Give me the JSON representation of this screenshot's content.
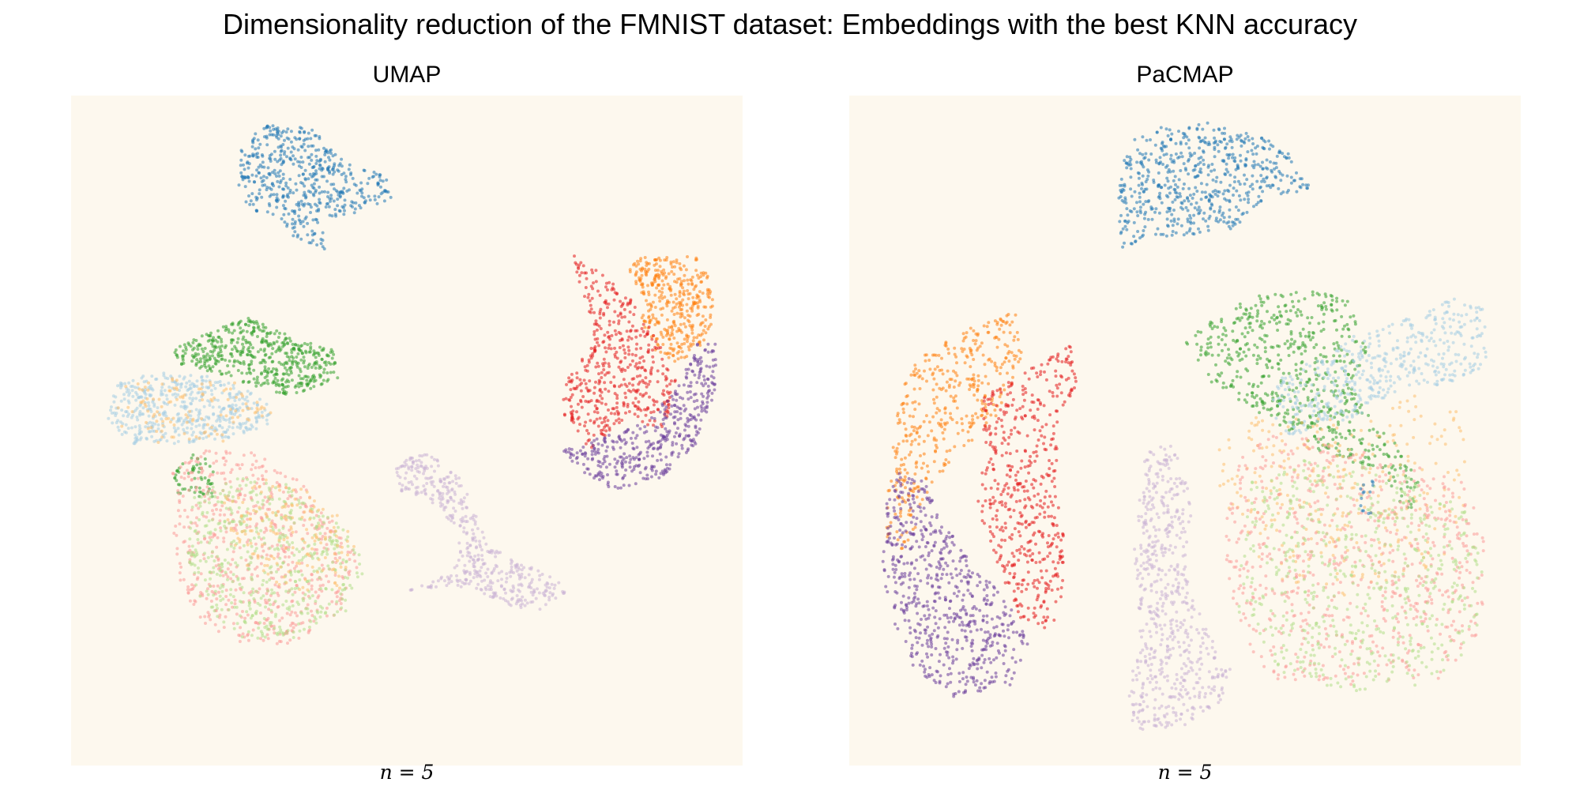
{
  "title": "Dimensionality reduction of the FMNIST dataset: Embeddings with the best KNN accuracy",
  "chart_data": [
    {
      "type": "scatter",
      "title": "UMAP",
      "xlabel": "n = 5",
      "ylabel": "",
      "axes": "off",
      "grid": false,
      "legend": "none",
      "xlim": [
        0,
        100
      ],
      "ylim": [
        0,
        100
      ],
      "background": "#fdf8ee",
      "clusters": [
        {
          "color": "#1f77b4",
          "count": 520,
          "outline": [
            [
              25,
              92
            ],
            [
              29,
              96
            ],
            [
              36,
              95
            ],
            [
              41,
              90
            ],
            [
              47,
              88
            ],
            [
              48,
              84
            ],
            [
              41,
              82
            ],
            [
              37,
              82
            ],
            [
              38,
              77
            ],
            [
              33,
              79
            ],
            [
              31,
              82
            ],
            [
              26,
              83
            ],
            [
              25,
              86
            ],
            [
              25,
              89
            ]
          ]
        },
        {
          "color": "#ff7f0e",
          "count": 380,
          "outline": [
            [
              83,
              74
            ],
            [
              85,
              76
            ],
            [
              93,
              76
            ],
            [
              95,
              73
            ],
            [
              96,
              67
            ],
            [
              94,
              63
            ],
            [
              92,
              61
            ],
            [
              89,
              60
            ],
            [
              87,
              62
            ],
            [
              85,
              65
            ],
            [
              85,
              70
            ]
          ]
        },
        {
          "color": "#e31a1c",
          "count": 480,
          "outline": [
            [
              74,
              77
            ],
            [
              77,
              75
            ],
            [
              82,
              71
            ],
            [
              85,
              68
            ],
            [
              89,
              60
            ],
            [
              91,
              55
            ],
            [
              88,
              50
            ],
            [
              83,
              52
            ],
            [
              77,
              47
            ],
            [
              73,
              53
            ],
            [
              74,
              59
            ],
            [
              78,
              63
            ],
            [
              77,
              68
            ]
          ]
        },
        {
          "color": "#6a3d9a",
          "count": 420,
          "outline": [
            [
              73,
              47
            ],
            [
              76,
              44
            ],
            [
              81,
              41
            ],
            [
              88,
              43
            ],
            [
              93,
              48
            ],
            [
              96,
              56
            ],
            [
              96,
              63
            ],
            [
              93,
              63
            ],
            [
              90,
              56
            ],
            [
              85,
              51
            ],
            [
              79,
              49
            ]
          ]
        },
        {
          "color": "#33a02c",
          "count": 520,
          "outline": [
            [
              15,
              62
            ],
            [
              19,
              64
            ],
            [
              26,
              67
            ],
            [
              33,
              64
            ],
            [
              39,
              62
            ],
            [
              40,
              58
            ],
            [
              33,
              55
            ],
            [
              26,
              57
            ],
            [
              20,
              59
            ],
            [
              16,
              60
            ]
          ]
        },
        {
          "color": "#a6cee3",
          "count": 480,
          "outline": [
            [
              5,
              52
            ],
            [
              7,
              57
            ],
            [
              13,
              59
            ],
            [
              21,
              58
            ],
            [
              29,
              55
            ],
            [
              30,
              51
            ],
            [
              24,
              49
            ],
            [
              16,
              48
            ],
            [
              9,
              48
            ]
          ]
        },
        {
          "color": "#fdbf6f",
          "count": 120,
          "outline": [
            [
              6,
              50
            ],
            [
              8,
              57
            ],
            [
              16,
              58
            ],
            [
              26,
              57
            ],
            [
              31,
              52
            ],
            [
              22,
              48
            ],
            [
              12,
              48
            ]
          ]
        },
        {
          "color": "#33a02c",
          "count": 60,
          "outline": [
            [
              15,
              45
            ],
            [
              19,
              47
            ],
            [
              22,
              45
            ],
            [
              21,
              40
            ],
            [
              16,
              40
            ]
          ]
        },
        {
          "color": "#fb9a99",
          "count": 620,
          "outline": [
            [
              15,
              44
            ],
            [
              20,
              47
            ],
            [
              27,
              47
            ],
            [
              34,
              43
            ],
            [
              40,
              36
            ],
            [
              43,
              30
            ],
            [
              40,
              23
            ],
            [
              34,
              18
            ],
            [
              26,
              18
            ],
            [
              20,
              21
            ],
            [
              16,
              27
            ],
            [
              15,
              37
            ]
          ]
        },
        {
          "color": "#b2df8a",
          "count": 520,
          "outline": [
            [
              18,
              40
            ],
            [
              24,
              43
            ],
            [
              32,
              42
            ],
            [
              40,
              36
            ],
            [
              44,
              30
            ],
            [
              41,
              23
            ],
            [
              33,
              19
            ],
            [
              25,
              19
            ],
            [
              19,
              25
            ],
            [
              17,
              33
            ]
          ]
        },
        {
          "color": "#fdbf6f",
          "count": 160,
          "outline": [
            [
              22,
              40
            ],
            [
              30,
              43
            ],
            [
              38,
              40
            ],
            [
              43,
              33
            ],
            [
              40,
              26
            ],
            [
              30,
              26
            ],
            [
              24,
              32
            ]
          ]
        },
        {
          "color": "#cab2d6",
          "count": 460,
          "outline": [
            [
              48,
              45
            ],
            [
              53,
              47
            ],
            [
              58,
              43
            ],
            [
              60,
              38
            ],
            [
              62,
              33
            ],
            [
              67,
              30
            ],
            [
              71,
              29
            ],
            [
              74,
              26
            ],
            [
              70,
              23
            ],
            [
              64,
              24
            ],
            [
              60,
              26
            ],
            [
              57,
              27
            ],
            [
              50,
              26
            ],
            [
              57,
              29
            ],
            [
              58,
              35
            ],
            [
              53,
              40
            ],
            [
              49,
              41
            ]
          ]
        }
      ]
    },
    {
      "type": "scatter",
      "title": "PaCMAP",
      "xlabel": "n = 5",
      "ylabel": "",
      "axes": "off",
      "grid": false,
      "legend": "none",
      "xlim": [
        0,
        100
      ],
      "ylim": [
        0,
        100
      ],
      "background": "#fdf8ee",
      "clusters": [
        {
          "color": "#1f77b4",
          "count": 600,
          "outline": [
            [
              41,
              92
            ],
            [
              44,
              95
            ],
            [
              53,
              96
            ],
            [
              61,
              94
            ],
            [
              65,
              92
            ],
            [
              69,
              86
            ],
            [
              63,
              85
            ],
            [
              57,
              80
            ],
            [
              50,
              79
            ],
            [
              44,
              79
            ],
            [
              40,
              76
            ],
            [
              40,
              84
            ]
          ]
        },
        {
          "color": "#ff7f0e",
          "count": 420,
          "outline": [
            [
              8,
              58
            ],
            [
              12,
              62
            ],
            [
              19,
              66
            ],
            [
              25,
              68
            ],
            [
              26,
              60
            ],
            [
              22,
              52
            ],
            [
              16,
              46
            ],
            [
              11,
              40
            ],
            [
              9,
              32
            ],
            [
              5,
              33
            ],
            [
              6,
              45
            ],
            [
              7,
              52
            ]
          ]
        },
        {
          "color": "#e31a1c",
          "count": 520,
          "outline": [
            [
              20,
              55
            ],
            [
              25,
              58
            ],
            [
              30,
              61
            ],
            [
              33,
              63
            ],
            [
              34,
              57
            ],
            [
              31,
              51
            ],
            [
              31,
              41
            ],
            [
              33,
              30
            ],
            [
              30,
              20
            ],
            [
              25,
              22
            ],
            [
              22,
              30
            ],
            [
              19,
              39
            ],
            [
              20,
              47
            ]
          ]
        },
        {
          "color": "#6a3d9a",
          "count": 620,
          "outline": [
            [
              5,
              40
            ],
            [
              7,
              44
            ],
            [
              12,
              42
            ],
            [
              14,
              36
            ],
            [
              19,
              30
            ],
            [
              23,
              25
            ],
            [
              27,
              19
            ],
            [
              24,
              12
            ],
            [
              15,
              10
            ],
            [
              9,
              15
            ],
            [
              5,
              25
            ]
          ]
        },
        {
          "color": "#33a02c",
          "count": 620,
          "outline": [
            [
              50,
              63
            ],
            [
              53,
              66
            ],
            [
              60,
              70
            ],
            [
              70,
              71
            ],
            [
              75,
              69
            ],
            [
              77,
              62
            ],
            [
              75,
              57
            ],
            [
              78,
              52
            ],
            [
              84,
              45
            ],
            [
              86,
              38
            ],
            [
              83,
              38
            ],
            [
              78,
              44
            ],
            [
              70,
              47
            ],
            [
              62,
              52
            ],
            [
              55,
              56
            ],
            [
              52,
              59
            ]
          ]
        },
        {
          "color": "#a6cee3",
          "count": 460,
          "outline": [
            [
              63,
              57
            ],
            [
              68,
              60
            ],
            [
              75,
              64
            ],
            [
              84,
              67
            ],
            [
              90,
              70
            ],
            [
              95,
              68
            ],
            [
              95,
              60
            ],
            [
              91,
              56
            ],
            [
              86,
              57
            ],
            [
              80,
              55
            ],
            [
              74,
              51
            ],
            [
              66,
              49
            ],
            [
              63,
              52
            ]
          ]
        },
        {
          "color": "#fdbf6f",
          "count": 300,
          "outline": [
            [
              55,
              48
            ],
            [
              60,
              52
            ],
            [
              72,
              52
            ],
            [
              86,
              56
            ],
            [
              92,
              52
            ],
            [
              92,
              40
            ],
            [
              88,
              30
            ],
            [
              75,
              25
            ],
            [
              62,
              28
            ],
            [
              57,
              36
            ],
            [
              55,
              42
            ]
          ]
        },
        {
          "color": "#fb9a99",
          "count": 700,
          "outline": [
            [
              58,
              46
            ],
            [
              64,
              50
            ],
            [
              74,
              48
            ],
            [
              84,
              45
            ],
            [
              92,
              42
            ],
            [
              95,
              32
            ],
            [
              94,
              20
            ],
            [
              88,
              13
            ],
            [
              74,
              12
            ],
            [
              62,
              13
            ],
            [
              58,
              20
            ],
            [
              56,
              30
            ],
            [
              56,
              38
            ]
          ]
        },
        {
          "color": "#b2df8a",
          "count": 600,
          "outline": [
            [
              60,
              44
            ],
            [
              70,
              46
            ],
            [
              82,
              44
            ],
            [
              92,
              38
            ],
            [
              95,
              28
            ],
            [
              93,
              18
            ],
            [
              86,
              12
            ],
            [
              74,
              11
            ],
            [
              64,
              14
            ],
            [
              58,
              22
            ],
            [
              58,
              32
            ]
          ]
        },
        {
          "color": "#cab2d6",
          "count": 600,
          "outline": [
            [
              44,
              47
            ],
            [
              48,
              48
            ],
            [
              50,
              44
            ],
            [
              51,
              38
            ],
            [
              50,
              31
            ],
            [
              51,
              25
            ],
            [
              54,
              19
            ],
            [
              57,
              14
            ],
            [
              55,
              9
            ],
            [
              50,
              6
            ],
            [
              42,
              5
            ],
            [
              41,
              10
            ],
            [
              43,
              17
            ],
            [
              43,
              24
            ],
            [
              42,
              31
            ],
            [
              43,
              39
            ]
          ]
        },
        {
          "color": "#1f77b4",
          "count": 14,
          "outline": [
            [
              76,
              42
            ],
            [
              78,
              43
            ],
            [
              78,
              37
            ],
            [
              76,
              38
            ]
          ]
        }
      ]
    }
  ]
}
